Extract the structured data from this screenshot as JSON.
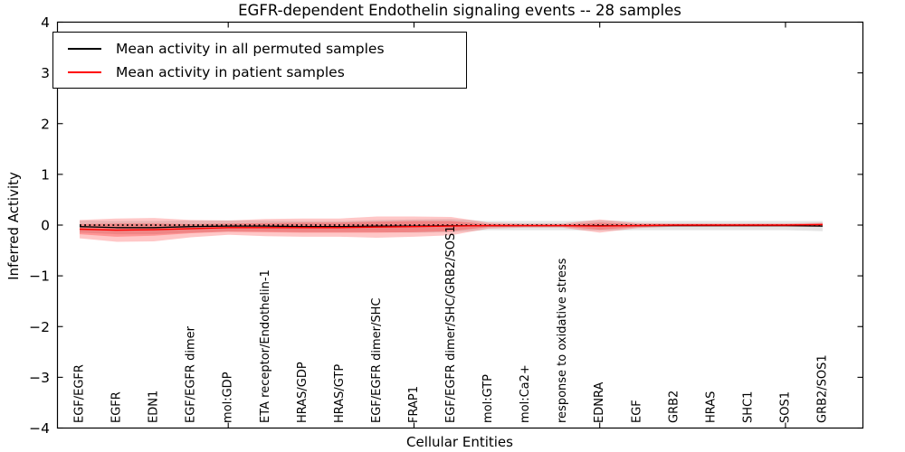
{
  "title": "EGFR-dependent Endothelin signaling events -- 28 samples",
  "axes": {
    "xlabel": "Cellular Entities",
    "ylabel": "Inferred Activity"
  },
  "chart_data": {
    "type": "line",
    "title": "EGFR-dependent Endothelin signaling events -- 28 samples",
    "xlabel": "Cellular Entities",
    "ylabel": "Inferred Activity",
    "ylim": [
      -4,
      4
    ],
    "yticks": [
      4,
      3,
      2,
      1,
      0,
      -1,
      -2,
      -3,
      -4
    ],
    "ytick_labels": [
      "4",
      "3",
      "2",
      "1",
      "0",
      "−1",
      "−2",
      "−3",
      "−4"
    ],
    "xtick_positions": [
      5,
      10,
      15,
      20
    ],
    "grid": false,
    "legend_position": "upper left",
    "zero_reference_line": 0,
    "categories": [
      "EGF/EGFR",
      "EGFR",
      "EDN1",
      "EGF/EGFR dimer",
      "mol:GDP",
      "ETA receptor/Endothelin-1",
      "HRAS/GDP",
      "HRAS/GTP",
      "EGF/EGFR dimer/SHC",
      "FRAP1",
      "EGF/EGFR dimer/SHC/GRB2/SOS1",
      "mol:GTP",
      "mol:Ca2+",
      "response to oxidative stress",
      "EDNRA",
      "EGF",
      "GRB2",
      "HRAS",
      "SHC1",
      "SOS1",
      "GRB2/SOS1"
    ],
    "series": [
      {
        "name": "Mean activity in all permuted samples",
        "color": "#000000",
        "values": [
          -0.03,
          -0.05,
          -0.05,
          -0.03,
          -0.02,
          -0.02,
          -0.03,
          -0.03,
          -0.02,
          -0.02,
          -0.01,
          -0.01,
          -0.01,
          -0.01,
          -0.01,
          -0.01,
          -0.01,
          -0.01,
          -0.01,
          -0.01,
          -0.02
        ],
        "band_halfwidth": [
          0.12,
          0.13,
          0.13,
          0.12,
          0.11,
          0.11,
          0.11,
          0.11,
          0.12,
          0.13,
          0.13,
          0.09,
          0.09,
          0.09,
          0.1,
          0.09,
          0.09,
          0.09,
          0.09,
          0.09,
          0.1
        ],
        "band_color": "#000000",
        "band_opacity": 0.1
      },
      {
        "name": "Mean activity in patient samples",
        "color": "#ff0000",
        "values": [
          -0.08,
          -0.1,
          -0.09,
          -0.07,
          -0.05,
          -0.05,
          -0.05,
          -0.05,
          -0.04,
          -0.03,
          -0.02,
          -0.01,
          -0.01,
          -0.01,
          -0.02,
          -0.01,
          0.0,
          0.0,
          0.0,
          0.0,
          0.01
        ],
        "band_halfwidth": [
          0.18,
          0.23,
          0.23,
          0.17,
          0.14,
          0.17,
          0.18,
          0.18,
          0.21,
          0.2,
          0.18,
          0.06,
          0.04,
          0.04,
          0.13,
          0.05,
          0.03,
          0.03,
          0.03,
          0.03,
          0.04
        ],
        "inner_band_halfwidth": [
          0.1,
          0.13,
          0.12,
          0.09,
          0.08,
          0.09,
          0.1,
          0.1,
          0.11,
          0.11,
          0.1,
          0.03,
          0.02,
          0.02,
          0.07,
          0.03,
          0.02,
          0.02,
          0.02,
          0.02,
          0.02
        ],
        "band_color": "#ff0000",
        "band_opacity": 0.22,
        "inner_band_opacity": 0.25
      }
    ]
  }
}
